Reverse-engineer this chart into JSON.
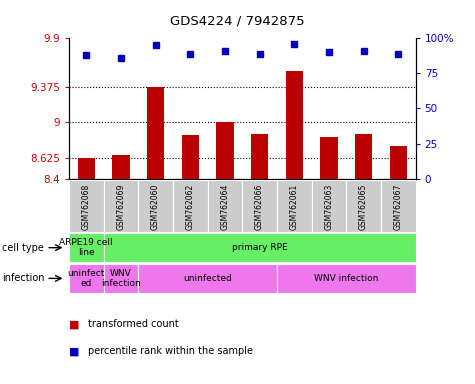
{
  "title": "GDS4224 / 7942875",
  "samples": [
    "GSM762068",
    "GSM762069",
    "GSM762060",
    "GSM762062",
    "GSM762064",
    "GSM762066",
    "GSM762061",
    "GSM762063",
    "GSM762065",
    "GSM762067"
  ],
  "transformed_counts": [
    8.62,
    8.65,
    9.375,
    8.87,
    9.0,
    8.88,
    9.55,
    8.85,
    8.88,
    8.75
  ],
  "percentile_ranks": [
    88,
    86,
    95,
    89,
    91,
    89,
    96,
    90,
    91,
    89
  ],
  "ylim_left": [
    8.4,
    9.9
  ],
  "yticks_left": [
    8.4,
    8.625,
    9.0,
    9.375,
    9.9
  ],
  "ytick_labels_left": [
    "8.4",
    "8.625",
    "9",
    "9.375",
    "9.9"
  ],
  "ylim_right": [
    0,
    100
  ],
  "yticks_right": [
    0,
    25,
    50,
    75,
    100
  ],
  "ytick_labels_right": [
    "0",
    "25",
    "50",
    "75",
    "100%"
  ],
  "bar_color": "#bb0000",
  "dot_color": "#0000bb",
  "cell_type_groups": [
    {
      "text": "ARPE19 cell\nline",
      "start": 0,
      "end": 1,
      "color": "#66ee66"
    },
    {
      "text": "primary RPE",
      "start": 1,
      "end": 10,
      "color": "#66ee66"
    }
  ],
  "infection_groups": [
    {
      "text": "uninfect\ned",
      "start": 0,
      "end": 1,
      "color": "#dd77ee"
    },
    {
      "text": "WNV\ninfection",
      "start": 1,
      "end": 2,
      "color": "#dd77ee"
    },
    {
      "text": "uninfected",
      "start": 2,
      "end": 6,
      "color": "#dd77ee"
    },
    {
      "text": "WNV infection",
      "start": 6,
      "end": 10,
      "color": "#dd77ee"
    }
  ],
  "tick_area_color": "#cccccc",
  "cell_type_color": "#66ee66",
  "infection_color": "#ee77ee",
  "legend": [
    {
      "label": "transformed count",
      "color": "#bb0000"
    },
    {
      "label": "percentile rank within the sample",
      "color": "#0000bb"
    }
  ]
}
